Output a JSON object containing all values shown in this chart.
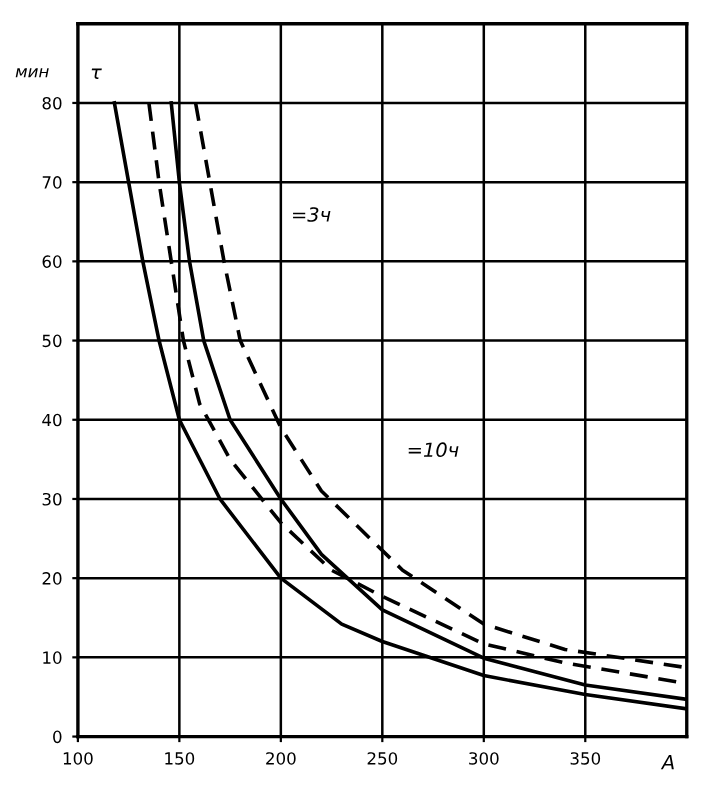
{
  "chart_data": {
    "type": "line",
    "xlabel": "A",
    "ylabel": "мин",
    "xlim": [
      100,
      400
    ],
    "ylim": [
      0,
      90
    ],
    "xticks": [
      100,
      150,
      200,
      250,
      300,
      350
    ],
    "yticks": [
      0,
      10,
      20,
      30,
      40,
      50,
      60,
      70,
      80
    ],
    "grid": true,
    "marker": "none",
    "series": [
      {
        "color": "#000000",
        "line_style": "solid",
        "x": [
          118,
          125,
          132,
          140,
          150,
          170,
          200,
          230,
          250,
          300,
          350,
          400
        ],
        "values": [
          80,
          70,
          60,
          50,
          40,
          30,
          20,
          14.2,
          12,
          7.7,
          5.3,
          3.5
        ]
      },
      {
        "color": "#000000",
        "line_style": "solid",
        "x": [
          146,
          150,
          155,
          162,
          175,
          200,
          220,
          250,
          300,
          350,
          400
        ],
        "values": [
          80,
          70,
          60,
          50,
          40,
          30,
          23,
          16,
          9.9,
          6.5,
          4.7
        ]
      },
      {
        "color": "#000000",
        "line_style": "dashed",
        "x": [
          135,
          140,
          146,
          152,
          160,
          175,
          200,
          225,
          250,
          300,
          340,
          400
        ],
        "values": [
          80,
          70,
          60,
          50,
          42,
          35,
          27,
          21,
          17.7,
          11.7,
          9.3,
          6.7
        ]
      },
      {
        "color": "#000000",
        "line_style": "dashed",
        "x": [
          158,
          165,
          172,
          180,
          200,
          220,
          260,
          300,
          340,
          400
        ],
        "values": [
          80,
          70,
          60,
          50,
          39,
          31,
          21,
          14.2,
          11,
          8.7
        ]
      }
    ],
    "annotations": [
      "τ",
      "=3ч",
      "=10ч"
    ]
  }
}
